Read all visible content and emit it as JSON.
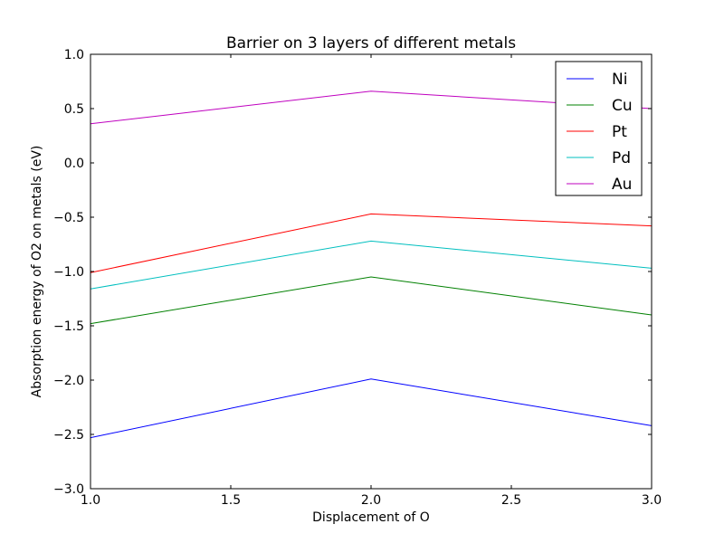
{
  "chart_data": {
    "type": "line",
    "title": "Barrier on 3 layers of different metals",
    "xlabel": "Displacement of O",
    "ylabel": "Absorption energy of O2 on metals (eV)",
    "xlim": [
      1.0,
      3.0
    ],
    "ylim": [
      -3.0,
      1.0
    ],
    "x": [
      1.0,
      2.0,
      3.0
    ],
    "xticks": [
      "1.0",
      "1.5",
      "2.0",
      "2.5",
      "3.0"
    ],
    "yticks": [
      "1.0",
      "0.5",
      "0.0",
      "−0.5",
      "−1.0",
      "−1.5",
      "−2.0",
      "−2.5",
      "−3.0"
    ],
    "grid": false,
    "legend_position": "top-right",
    "series": [
      {
        "name": "Ni",
        "color": "#0000ff",
        "values": [
          -2.53,
          -1.99,
          -2.42
        ]
      },
      {
        "name": "Cu",
        "color": "#008000",
        "values": [
          -1.48,
          -1.05,
          -1.4
        ]
      },
      {
        "name": "Pt",
        "color": "#ff0000",
        "values": [
          -1.01,
          -0.47,
          -0.58
        ]
      },
      {
        "name": "Pd",
        "color": "#00bfbf",
        "values": [
          -1.16,
          -0.72,
          -0.97
        ]
      },
      {
        "name": "Au",
        "color": "#bf00bf",
        "values": [
          0.36,
          0.66,
          0.5
        ]
      }
    ]
  }
}
